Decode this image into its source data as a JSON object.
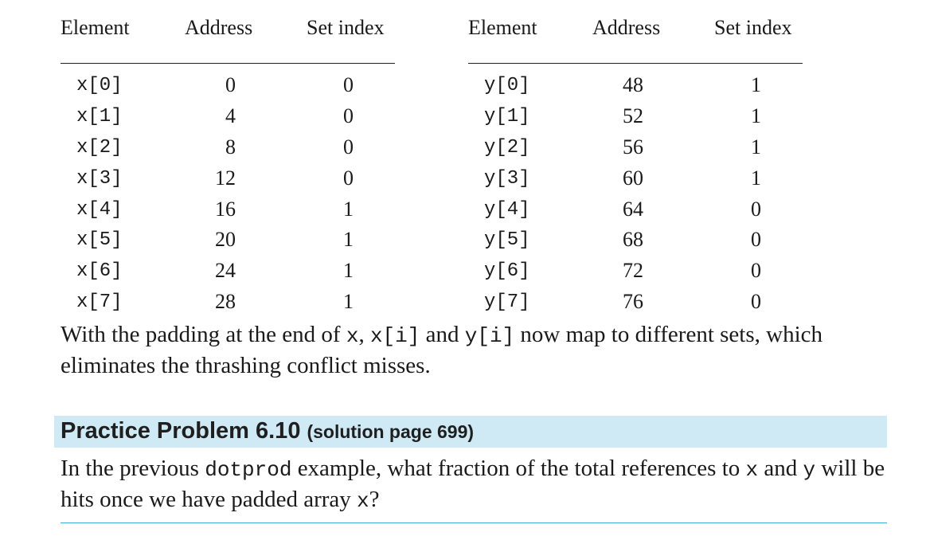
{
  "headers": {
    "element": "Element",
    "address": "Address",
    "set_index": "Set index"
  },
  "x_table": [
    {
      "element": "x[0]",
      "address": "0",
      "set": "0"
    },
    {
      "element": "x[1]",
      "address": "4",
      "set": "0"
    },
    {
      "element": "x[2]",
      "address": "8",
      "set": "0"
    },
    {
      "element": "x[3]",
      "address": "12",
      "set": "0"
    },
    {
      "element": "x[4]",
      "address": "16",
      "set": "1"
    },
    {
      "element": "x[5]",
      "address": "20",
      "set": "1"
    },
    {
      "element": "x[6]",
      "address": "24",
      "set": "1"
    },
    {
      "element": "x[7]",
      "address": "28",
      "set": "1"
    }
  ],
  "y_table": [
    {
      "element": "y[0]",
      "address": "48",
      "set": "1"
    },
    {
      "element": "y[1]",
      "address": "52",
      "set": "1"
    },
    {
      "element": "y[2]",
      "address": "56",
      "set": "1"
    },
    {
      "element": "y[3]",
      "address": "60",
      "set": "1"
    },
    {
      "element": "y[4]",
      "address": "64",
      "set": "0"
    },
    {
      "element": "y[5]",
      "address": "68",
      "set": "0"
    },
    {
      "element": "y[6]",
      "address": "72",
      "set": "0"
    },
    {
      "element": "y[7]",
      "address": "76",
      "set": "0"
    }
  ],
  "paragraph": {
    "t1": "With the padding at the end of ",
    "c1": "x",
    "t2": ", ",
    "c2": "x[i]",
    "t3": " and ",
    "c3": "y[i]",
    "t4": " now map to different sets, which eliminates the thrashing conflict misses."
  },
  "practice": {
    "title": "Practice Problem 6.10",
    "solution_ref": "(solution page 699)",
    "t1": "In the previous ",
    "c1": "dotprod",
    "t2": " example, what fraction of the total references to ",
    "c2": "x",
    "t3": " and ",
    "c3": "y",
    "t4": " will be hits once we have padded array ",
    "c4": "x",
    "t5": "?"
  },
  "colors": {
    "practice_bar": "#cfe9f5",
    "bottom_rule": "#3fb0d8"
  }
}
